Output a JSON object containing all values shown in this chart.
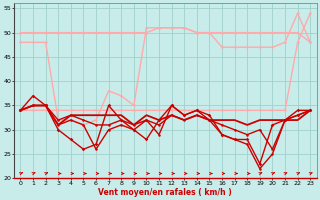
{
  "xlabel": "Vent moyen/en rafales ( km/h )",
  "xlim": [
    -0.5,
    23.5
  ],
  "ylim": [
    20,
    56
  ],
  "yticks": [
    20,
    25,
    30,
    35,
    40,
    45,
    50,
    55
  ],
  "xticks": [
    0,
    1,
    2,
    3,
    4,
    5,
    6,
    7,
    8,
    9,
    10,
    11,
    12,
    13,
    14,
    15,
    16,
    17,
    18,
    19,
    20,
    21,
    22,
    23
  ],
  "bg_color": "#c8ecea",
  "grid_color": "#a0d0cc",
  "series": [
    {
      "x": [
        0,
        1,
        2,
        3,
        4,
        5,
        6,
        7,
        8,
        9,
        10,
        11,
        12,
        13,
        14,
        15,
        16,
        17,
        18,
        19,
        20,
        21,
        22,
        23
      ],
      "y": [
        50,
        50,
        50,
        50,
        50,
        50,
        50,
        50,
        50,
        50,
        50,
        51,
        51,
        51,
        50,
        50,
        50,
        50,
        50,
        50,
        50,
        50,
        50,
        48
      ],
      "color": "#ffaaaa",
      "lw": 1.0,
      "marker": "o",
      "ms": 1.8
    },
    {
      "x": [
        0,
        1,
        2,
        3,
        4,
        5,
        6,
        7,
        8,
        9,
        10,
        11,
        12,
        13,
        14,
        15,
        16,
        17,
        18,
        19,
        20,
        21,
        22,
        23
      ],
      "y": [
        48,
        48,
        48,
        32,
        32,
        31,
        32,
        38,
        37,
        35,
        51,
        51,
        51,
        51,
        50,
        50,
        47,
        47,
        47,
        47,
        47,
        48,
        54,
        48
      ],
      "color": "#ffaaaa",
      "lw": 1.0,
      "marker": "o",
      "ms": 1.8
    },
    {
      "x": [
        0,
        1,
        2,
        3,
        4,
        5,
        6,
        7,
        8,
        9,
        10,
        11,
        12,
        13,
        14,
        15,
        16,
        17,
        18,
        19,
        20,
        21,
        22,
        23
      ],
      "y": [
        34,
        34,
        34,
        34,
        34,
        34,
        34,
        34,
        34,
        34,
        34,
        34,
        34,
        34,
        34,
        34,
        34,
        34,
        34,
        34,
        34,
        34,
        48,
        54
      ],
      "color": "#ffaaaa",
      "lw": 1.0,
      "marker": "o",
      "ms": 1.8
    },
    {
      "x": [
        0,
        1,
        2,
        3,
        4,
        5,
        6,
        7,
        8,
        9,
        10,
        11,
        12,
        13,
        14,
        15,
        16,
        17,
        18,
        19,
        20,
        21,
        22,
        23
      ],
      "y": [
        34,
        37,
        35,
        30,
        28,
        26,
        27,
        35,
        32,
        30,
        28,
        32,
        35,
        33,
        34,
        33,
        29,
        28,
        28,
        23,
        31,
        32,
        34,
        34
      ],
      "color": "#cc0000",
      "lw": 1.0,
      "marker": "D",
      "ms": 1.8
    },
    {
      "x": [
        0,
        1,
        2,
        3,
        4,
        5,
        6,
        7,
        8,
        9,
        10,
        11,
        12,
        13,
        14,
        15,
        16,
        17,
        18,
        19,
        20,
        21,
        22,
        23
      ],
      "y": [
        34,
        35,
        35,
        31,
        32,
        31,
        26,
        30,
        31,
        30,
        32,
        29,
        35,
        33,
        34,
        32,
        29,
        28,
        27,
        22,
        25,
        32,
        33,
        34
      ],
      "color": "#cc0000",
      "lw": 1.0,
      "marker": "o",
      "ms": 1.8
    },
    {
      "x": [
        0,
        1,
        2,
        3,
        4,
        5,
        6,
        7,
        8,
        9,
        10,
        11,
        12,
        13,
        14,
        15,
        16,
        17,
        18,
        19,
        20,
        21,
        22,
        23
      ],
      "y": [
        34,
        35,
        35,
        31,
        33,
        33,
        33,
        33,
        33,
        31,
        33,
        32,
        33,
        32,
        33,
        32,
        32,
        32,
        31,
        32,
        32,
        32,
        32,
        34
      ],
      "color": "#cc0000",
      "lw": 1.3,
      "marker": null,
      "ms": 0
    },
    {
      "x": [
        0,
        1,
        2,
        3,
        4,
        5,
        6,
        7,
        8,
        9,
        10,
        11,
        12,
        13,
        14,
        15,
        16,
        17,
        18,
        19,
        20,
        21,
        22,
        23
      ],
      "y": [
        34,
        35,
        35,
        32,
        33,
        32,
        31,
        31,
        32,
        31,
        32,
        31,
        33,
        32,
        33,
        32,
        31,
        30,
        29,
        30,
        26,
        32,
        33,
        34
      ],
      "color": "#cc0000",
      "lw": 1.0,
      "marker": "o",
      "ms": 1.8
    }
  ],
  "arrow_color": "#cc0000",
  "arrow_angles": [
    45,
    45,
    45,
    0,
    0,
    0,
    0,
    0,
    0,
    0,
    0,
    0,
    0,
    0,
    0,
    0,
    0,
    0,
    0,
    45,
    45,
    45,
    45,
    45
  ]
}
